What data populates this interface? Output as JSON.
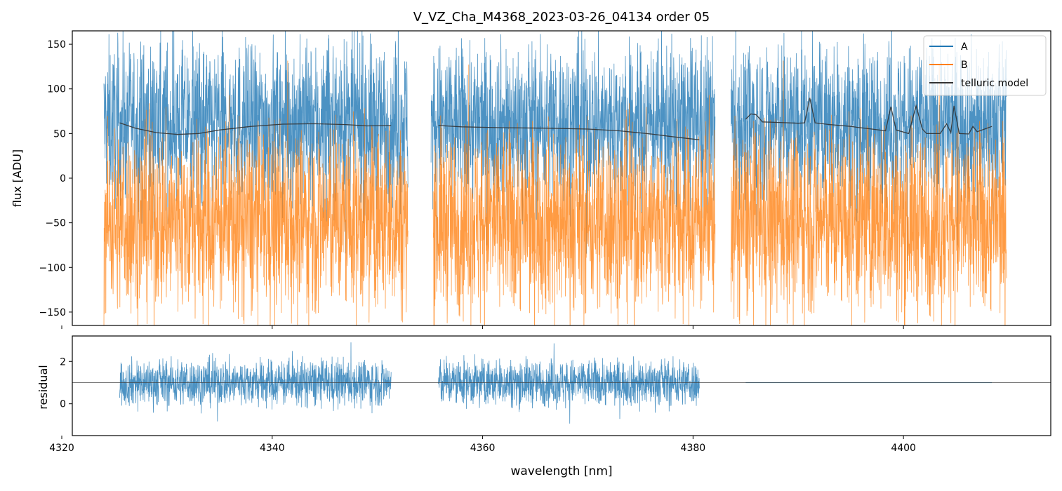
{
  "chart_data": [
    {
      "type": "line",
      "title": "V_VZ_Cha_M4368_2023-03-26_04134  order 05",
      "xlabel": "",
      "ylabel": "flux [ADU]",
      "xlim": [
        4321.0,
        4414.0
      ],
      "ylim": [
        -165,
        165
      ],
      "yticks": [
        150,
        100,
        50,
        0,
        -50,
        -100,
        -150
      ],
      "yticklabels": [
        "150",
        "100",
        "50",
        "0",
        "−50",
        "−100",
        "−150"
      ],
      "legend_position": "top-right",
      "legend": [
        "A",
        "B",
        "telluric model"
      ],
      "series": [
        {
          "name": "A",
          "color": "#1f77b4",
          "segments": [
            [
              4324.0,
              4352.9
            ],
            [
              4355.1,
              4382.1
            ],
            [
              4383.6,
              4409.8
            ]
          ],
          "center": 62,
          "spread": 44,
          "approx_range": [
            -165,
            165
          ]
        },
        {
          "name": "B",
          "color": "#ff7f0e",
          "segments": [
            [
              4324.0,
              4352.9
            ],
            [
              4355.3,
              4382.1
            ],
            [
              4383.6,
              4409.8
            ]
          ],
          "center": -48,
          "spread": 52,
          "approx_range": [
            -165,
            135
          ]
        },
        {
          "name": "telluric model",
          "color": "#333333",
          "points": [
            [
              4325.5,
              62
            ],
            [
              4327,
              56
            ],
            [
              4329,
              51
            ],
            [
              4331,
              49
            ],
            [
              4333,
              50
            ],
            [
              4335,
              54
            ],
            [
              4338,
              58
            ],
            [
              4341,
              60.5
            ],
            [
              4344,
              61
            ],
            [
              4347,
              60
            ],
            [
              4349,
              58.5
            ],
            [
              4351.3,
              59
            ],
            null,
            [
              4355.8,
              59
            ],
            [
              4358,
              57.5
            ],
            [
              4362,
              56.5
            ],
            [
              4366,
              56
            ],
            [
              4370,
              55
            ],
            [
              4373,
              53
            ],
            [
              4376,
              49.5
            ],
            [
              4378,
              46.5
            ],
            [
              4380.6,
              43
            ],
            null,
            [
              4385.0,
              66
            ],
            [
              4385.5,
              72
            ],
            [
              4386,
              71
            ],
            [
              4386.6,
              63
            ],
            [
              4388,
              62.5
            ],
            [
              4390,
              61.5
            ],
            [
              4390.6,
              62
            ],
            [
              4391.1,
              90
            ],
            [
              4391.6,
              62
            ],
            [
              4393,
              60
            ],
            [
              4395,
              58
            ],
            [
              4395.6,
              57
            ],
            [
              4397,
              55
            ],
            [
              4398.3,
              53
            ],
            [
              4398.8,
              80
            ],
            [
              4399.3,
              54
            ],
            [
              4400.5,
              50
            ],
            [
              4401.2,
              81
            ],
            [
              4401.8,
              55
            ],
            [
              4402.2,
              50
            ],
            [
              4403.5,
              50
            ],
            [
              4404.1,
              61
            ],
            [
              4404.5,
              51
            ],
            [
              4404.8,
              81
            ],
            [
              4405.3,
              50
            ],
            [
              4406.2,
              49.5
            ],
            [
              4406.6,
              58
            ],
            [
              4407,
              52
            ],
            [
              4408.4,
              58
            ]
          ]
        }
      ]
    },
    {
      "type": "line",
      "title": "",
      "xlabel": "wavelength [nm]",
      "ylabel": "residual",
      "xlim": [
        4321.0,
        4414.0
      ],
      "ylim": [
        -1.5,
        3.2
      ],
      "yticks": [
        2,
        0
      ],
      "yticklabels": [
        "2",
        "0"
      ],
      "xticks": [
        4320,
        4340,
        4360,
        4380,
        4400
      ],
      "xticklabels": [
        "4320",
        "4340",
        "4360",
        "4380",
        "4400"
      ],
      "reference_line": 1.0,
      "series": [
        {
          "name": "residual",
          "color": "#1f77b4",
          "segments": [
            [
              4325.5,
              4351.3
            ],
            [
              4355.8,
              4380.6
            ]
          ],
          "center": 1.0,
          "spread": 0.55
        },
        {
          "name": "residual (flat)",
          "color": "#1f77b4",
          "segments": [
            [
              4385.0,
              4408.4
            ]
          ],
          "value": 1.0
        }
      ]
    }
  ],
  "colors": {
    "A": "#1f77b4",
    "B": "#ff7f0e",
    "telluric": "#333333",
    "axis": "#000000"
  }
}
